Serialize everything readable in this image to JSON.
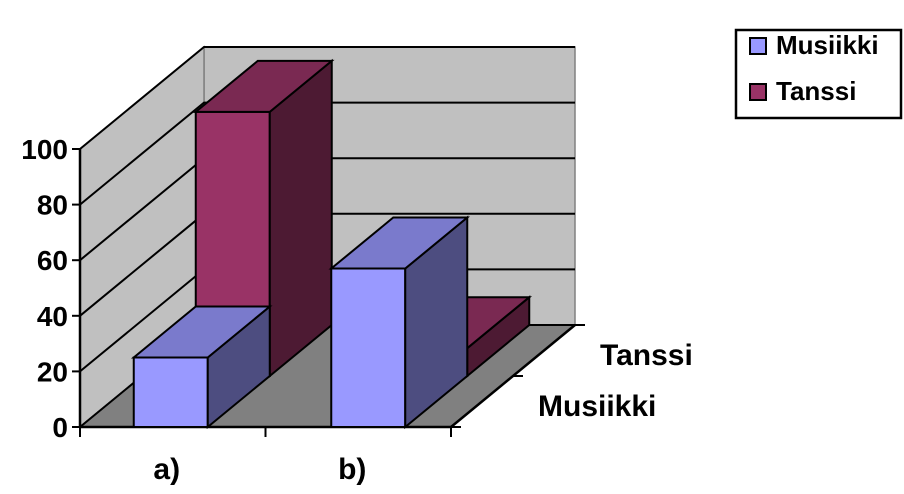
{
  "chart_data": {
    "type": "bar",
    "subtype": "3d-column",
    "categories": [
      "a)",
      "b)"
    ],
    "series": [
      {
        "name": "Musiikki",
        "values": [
          25,
          57
        ],
        "color": "#9999ff"
      },
      {
        "name": "Tanssi",
        "values": [
          95,
          10
        ],
        "color": "#993366"
      }
    ],
    "depth_labels": [
      "Musiikki",
      "Tanssi"
    ],
    "yticks": [
      "0",
      "20",
      "40",
      "60",
      "80",
      "100"
    ],
    "ylim": [
      0,
      100
    ],
    "grid": true,
    "legend_position": "top-right",
    "title": "",
    "xlabel": "",
    "ylabel": ""
  }
}
